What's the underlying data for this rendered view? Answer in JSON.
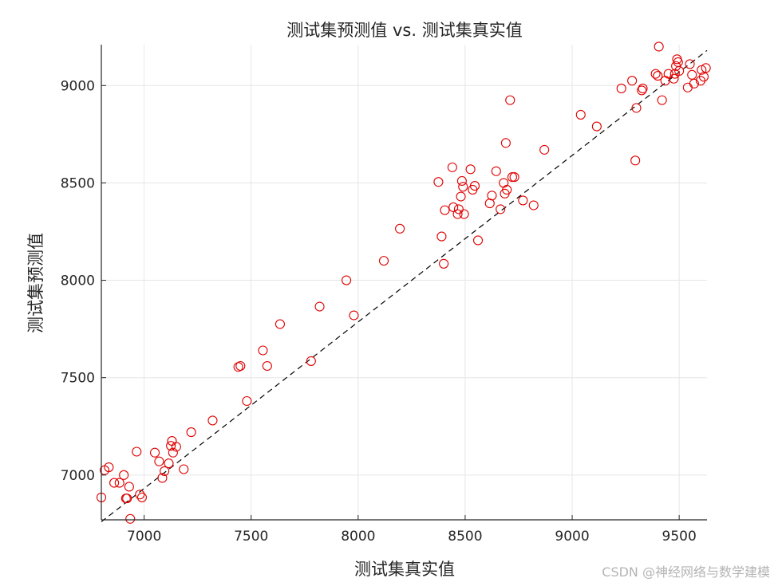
{
  "chart_data": {
    "type": "scatter",
    "title": "测试集预测值 vs. 测试集真实值",
    "xlabel": "测试集真实值",
    "ylabel": "测试集预测值",
    "xlim": [
      6800,
      9630
    ],
    "ylim": [
      6770,
      9210
    ],
    "xticks": [
      "7000",
      "7500",
      "8000",
      "8500",
      "9000",
      "9500"
    ],
    "yticks": [
      "7000",
      "7500",
      "8000",
      "8500",
      "9000"
    ],
    "grid": true,
    "marker_color": "#e00000",
    "reference_line": {
      "style": "dashed",
      "color": "#000000",
      "from": [
        6800,
        6760
      ],
      "to": [
        9630,
        9180
      ]
    },
    "points": [
      [
        6800,
        6885
      ],
      [
        6815,
        7025
      ],
      [
        6835,
        7040
      ],
      [
        6860,
        6960
      ],
      [
        6885,
        6960
      ],
      [
        6905,
        7000
      ],
      [
        6915,
        6880
      ],
      [
        6920,
        6880
      ],
      [
        6930,
        6940
      ],
      [
        6935,
        6775
      ],
      [
        6965,
        7120
      ],
      [
        6980,
        6900
      ],
      [
        6990,
        6885
      ],
      [
        7050,
        7115
      ],
      [
        7070,
        7070
      ],
      [
        7085,
        6985
      ],
      [
        7095,
        7020
      ],
      [
        7115,
        7060
      ],
      [
        7125,
        7150
      ],
      [
        7130,
        7175
      ],
      [
        7135,
        7115
      ],
      [
        7150,
        7145
      ],
      [
        7185,
        7030
      ],
      [
        7220,
        7220
      ],
      [
        7320,
        7280
      ],
      [
        7440,
        7555
      ],
      [
        7450,
        7560
      ],
      [
        7480,
        7380
      ],
      [
        7555,
        7640
      ],
      [
        7575,
        7560
      ],
      [
        7635,
        7775
      ],
      [
        7780,
        7585
      ],
      [
        7820,
        7865
      ],
      [
        7945,
        8000
      ],
      [
        7980,
        7820
      ],
      [
        8120,
        8100
      ],
      [
        8195,
        8265
      ],
      [
        8375,
        8505
      ],
      [
        8390,
        8225
      ],
      [
        8400,
        8085
      ],
      [
        8405,
        8360
      ],
      [
        8440,
        8580
      ],
      [
        8445,
        8375
      ],
      [
        8465,
        8340
      ],
      [
        8470,
        8365
      ],
      [
        8480,
        8430
      ],
      [
        8485,
        8510
      ],
      [
        8490,
        8480
      ],
      [
        8495,
        8340
      ],
      [
        8525,
        8570
      ],
      [
        8535,
        8465
      ],
      [
        8545,
        8485
      ],
      [
        8560,
        8205
      ],
      [
        8615,
        8395
      ],
      [
        8625,
        8435
      ],
      [
        8645,
        8560
      ],
      [
        8665,
        8365
      ],
      [
        8680,
        8500
      ],
      [
        8685,
        8445
      ],
      [
        8690,
        8705
      ],
      [
        8695,
        8465
      ],
      [
        8710,
        8925
      ],
      [
        8720,
        8530
      ],
      [
        8730,
        8530
      ],
      [
        8770,
        8410
      ],
      [
        8820,
        8385
      ],
      [
        8870,
        8670
      ],
      [
        9040,
        8850
      ],
      [
        9115,
        8790
      ],
      [
        9230,
        8985
      ],
      [
        9280,
        9025
      ],
      [
        9295,
        8615
      ],
      [
        9300,
        8885
      ],
      [
        9325,
        8975
      ],
      [
        9330,
        8985
      ],
      [
        9390,
        9060
      ],
      [
        9400,
        9050
      ],
      [
        9405,
        9200
      ],
      [
        9420,
        8925
      ],
      [
        9435,
        9025
      ],
      [
        9450,
        9060
      ],
      [
        9475,
        9035
      ],
      [
        9480,
        9060
      ],
      [
        9485,
        9100
      ],
      [
        9490,
        9135
      ],
      [
        9495,
        9120
      ],
      [
        9500,
        9075
      ],
      [
        9540,
        8990
      ],
      [
        9550,
        9110
      ],
      [
        9560,
        9055
      ],
      [
        9570,
        9010
      ],
      [
        9600,
        9025
      ],
      [
        9605,
        9080
      ],
      [
        9615,
        9045
      ],
      [
        9625,
        9090
      ]
    ]
  },
  "watermark": "CSDN @神经网络与数学建模"
}
